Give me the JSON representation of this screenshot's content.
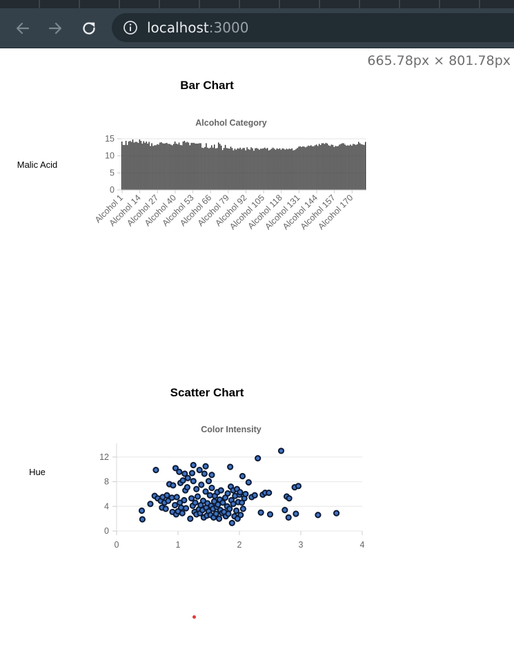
{
  "browser": {
    "url_host": "localhost",
    "url_port": ":3000",
    "dimensions_readout": "665.78px × 801.78px"
  },
  "sections": {
    "bar": {
      "heading": "Bar Chart",
      "y_feature": "Malic Acid"
    },
    "scatter": {
      "heading": "Scatter Chart",
      "y_feature": "Hue"
    }
  },
  "colors": {
    "bar_fill": "#6b6b6b",
    "bar_edge": "#1c1c1c",
    "point_fill": "#3f73c4",
    "point_stroke": "#0c1a33",
    "grid": "#e6e6e6",
    "tick_text": "#666666"
  },
  "chart_data": [
    {
      "type": "bar",
      "title": "Alcohol Category",
      "ylabel": "",
      "ylim": [
        0,
        15
      ],
      "yticks": [
        0,
        5,
        10,
        15
      ],
      "tick_labels": [
        "Alcohol 1",
        "Alcohol 14",
        "Alcohol 27",
        "Alcohol 40",
        "Alcohol 53",
        "Alcohol 66",
        "Alcohol 79",
        "Alcohol 92",
        "Alcohol 105",
        "Alcohol 118",
        "Alcohol 131",
        "Alcohol 144",
        "Alcohol 157",
        "Alcohol 170"
      ],
      "category_count": 178,
      "values": [
        14.2,
        13.2,
        13.2,
        14.4,
        13.2,
        14.2,
        14.4,
        14.1,
        14.8,
        13.9,
        14.1,
        14.1,
        13.8,
        14.8,
        14.4,
        13.6,
        14.3,
        13.8,
        14.2,
        13.6,
        14.1,
        12.9,
        13.7,
        12.9,
        13.1,
        13.1,
        13.4,
        13.3,
        13.9,
        14.0,
        13.7,
        13.6,
        13.7,
        13.8,
        13.5,
        13.5,
        13.3,
        13.1,
        13.5,
        14.2,
        13.6,
        13.4,
        13.9,
        13.2,
        13.1,
        14.2,
        14.4,
        13.9,
        14.1,
        13.9,
        13.1,
        13.8,
        13.8,
        13.8,
        13.6,
        13.6,
        13.6,
        13.7,
        13.7,
        12.4,
        12.3,
        12.6,
        13.7,
        12.4,
        12.2,
        12.4,
        13.1,
        12.4,
        13.3,
        12.2,
        12.3,
        13.9,
        13.5,
        13.0,
        11.7,
        12.3,
        13.2,
        12.3,
        12.2,
        12.1,
        12.7,
        12.3,
        11.6,
        12.1,
        11.8,
        12.2,
        12.1,
        12.4,
        11.9,
        12.3,
        12.3,
        11.6,
        12.5,
        12.0,
        11.8,
        12.5,
        12.2,
        11.5,
        12.2,
        12.3,
        12.1,
        11.8,
        12.1,
        12.1,
        12.2,
        12.4,
        12.1,
        12.3,
        11.6,
        11.8,
        12.1,
        12.4,
        12.1,
        11.8,
        12.2,
        12.0,
        12.2,
        11.8,
        12.2,
        12.1,
        11.8,
        12.1,
        11.9,
        12.1,
        12.0,
        12.2,
        11.6,
        11.7,
        12.0,
        12.3,
        12.7,
        12.8,
        12.6,
        12.8,
        12.7,
        12.5,
        12.7,
        13.0,
        12.9,
        13.1,
        12.8,
        12.8,
        13.1,
        13.3,
        12.9,
        13.5,
        13.2,
        13.7,
        13.7,
        13.5,
        13.8,
        13.6,
        13.1,
        12.9,
        13.3,
        13.2,
        12.6,
        12.9,
        12.8,
        12.9,
        13.3,
        13.5,
        13.7,
        13.7,
        13.3,
        13.0,
        13.1,
        13.0,
        13.3,
        13.0,
        13.5,
        13.4,
        13.2,
        13.4,
        14.1,
        13.7,
        13.4,
        13.3,
        13.2,
        14.1
      ]
    },
    {
      "type": "scatter",
      "title": "Color Intensity",
      "xlabel": "",
      "ylabel": "",
      "xlim": [
        0,
        4
      ],
      "ylim": [
        0,
        14
      ],
      "xticks": [
        0,
        1,
        2,
        3,
        4
      ],
      "yticks": [
        0,
        4,
        8,
        12
      ],
      "grid": true,
      "points": [
        [
          0.41,
          3.3
        ],
        [
          0.42,
          1.9
        ],
        [
          0.55,
          4.4
        ],
        [
          0.62,
          5.7
        ],
        [
          0.64,
          9.9
        ],
        [
          0.67,
          5.3
        ],
        [
          0.72,
          4.9
        ],
        [
          0.74,
          3.8
        ],
        [
          0.75,
          5.5
        ],
        [
          0.78,
          4.6
        ],
        [
          0.8,
          3.6
        ],
        [
          0.82,
          5.8
        ],
        [
          0.84,
          4.9
        ],
        [
          0.86,
          7.6
        ],
        [
          0.9,
          5.4
        ],
        [
          0.91,
          3.1
        ],
        [
          0.92,
          7.4
        ],
        [
          0.95,
          4.2
        ],
        [
          0.96,
          10.2
        ],
        [
          0.97,
          2.7
        ],
        [
          0.98,
          5.5
        ],
        [
          1.0,
          3.2
        ],
        [
          1.02,
          9.6
        ],
        [
          1.03,
          4.6
        ],
        [
          1.04,
          7.8
        ],
        [
          1.05,
          3.8
        ],
        [
          1.07,
          2.9
        ],
        [
          1.08,
          8.2
        ],
        [
          1.1,
          5.0
        ],
        [
          1.11,
          9.3
        ],
        [
          1.12,
          6.6
        ],
        [
          1.13,
          3.7
        ],
        [
          1.15,
          7.1
        ],
        [
          1.16,
          8.6
        ],
        [
          1.2,
          2.0
        ],
        [
          1.22,
          5.3
        ],
        [
          1.23,
          9.4
        ],
        [
          1.24,
          4.1
        ],
        [
          1.25,
          10.7
        ],
        [
          1.25,
          8.1
        ],
        [
          1.27,
          3.1
        ],
        [
          1.28,
          4.6
        ],
        [
          1.3,
          2.7
        ],
        [
          1.3,
          6.8
        ],
        [
          1.32,
          5.6
        ],
        [
          1.34,
          3.5
        ],
        [
          1.35,
          9.9
        ],
        [
          1.36,
          2.9
        ],
        [
          1.37,
          4.2
        ],
        [
          1.38,
          7.5
        ],
        [
          1.4,
          3.4
        ],
        [
          1.41,
          4.9
        ],
        [
          1.42,
          2.2
        ],
        [
          1.43,
          9.3
        ],
        [
          1.45,
          10.5
        ],
        [
          1.45,
          6.4
        ],
        [
          1.46,
          3.8
        ],
        [
          1.47,
          2.5
        ],
        [
          1.48,
          4.5
        ],
        [
          1.5,
          3.2
        ],
        [
          1.5,
          8.1
        ],
        [
          1.52,
          5.8
        ],
        [
          1.53,
          2.6
        ],
        [
          1.54,
          4.1
        ],
        [
          1.55,
          9.1
        ],
        [
          1.55,
          7.0
        ],
        [
          1.57,
          3.6
        ],
        [
          1.58,
          2.2
        ],
        [
          1.59,
          4.8
        ],
        [
          1.6,
          5.7
        ],
        [
          1.62,
          2.8
        ],
        [
          1.63,
          3.9
        ],
        [
          1.64,
          6.3
        ],
        [
          1.65,
          4.3
        ],
        [
          1.67,
          2.0
        ],
        [
          1.68,
          5.1
        ],
        [
          1.69,
          3.4
        ],
        [
          1.7,
          6.6
        ],
        [
          1.72,
          2.9
        ],
        [
          1.73,
          4.6
        ],
        [
          1.75,
          3.1
        ],
        [
          1.77,
          5.4
        ],
        [
          1.78,
          2.4
        ],
        [
          1.8,
          4.0
        ],
        [
          1.81,
          6.1
        ],
        [
          1.82,
          2.8
        ],
        [
          1.84,
          3.6
        ],
        [
          1.85,
          10.4
        ],
        [
          1.86,
          7.2
        ],
        [
          1.87,
          5.0
        ],
        [
          1.88,
          1.3
        ],
        [
          1.9,
          4.4
        ],
        [
          1.9,
          6.6
        ],
        [
          1.92,
          2.4
        ],
        [
          1.93,
          5.7
        ],
        [
          1.95,
          3.3
        ],
        [
          1.96,
          6.8
        ],
        [
          1.97,
          2.0
        ],
        [
          1.98,
          4.7
        ],
        [
          2.0,
          5.9
        ],
        [
          2.01,
          6.3
        ],
        [
          2.02,
          2.6
        ],
        [
          2.04,
          4.6
        ],
        [
          2.05,
          8.9
        ],
        [
          2.06,
          3.6
        ],
        [
          2.08,
          5.3
        ],
        [
          2.1,
          6.0
        ],
        [
          2.15,
          7.9
        ],
        [
          2.2,
          5.5
        ],
        [
          2.25,
          5.8
        ],
        [
          2.3,
          11.8
        ],
        [
          2.35,
          3.0
        ],
        [
          2.38,
          5.9
        ],
        [
          2.42,
          6.2
        ],
        [
          2.48,
          6.2
        ],
        [
          2.5,
          2.7
        ],
        [
          2.68,
          13.0
        ],
        [
          2.74,
          3.4
        ],
        [
          2.77,
          5.6
        ],
        [
          2.8,
          2.2
        ],
        [
          2.81,
          5.3
        ],
        [
          2.9,
          7.1
        ],
        [
          2.92,
          2.8
        ],
        [
          2.96,
          7.3
        ],
        [
          3.28,
          2.6
        ],
        [
          3.58,
          2.9
        ]
      ]
    }
  ]
}
